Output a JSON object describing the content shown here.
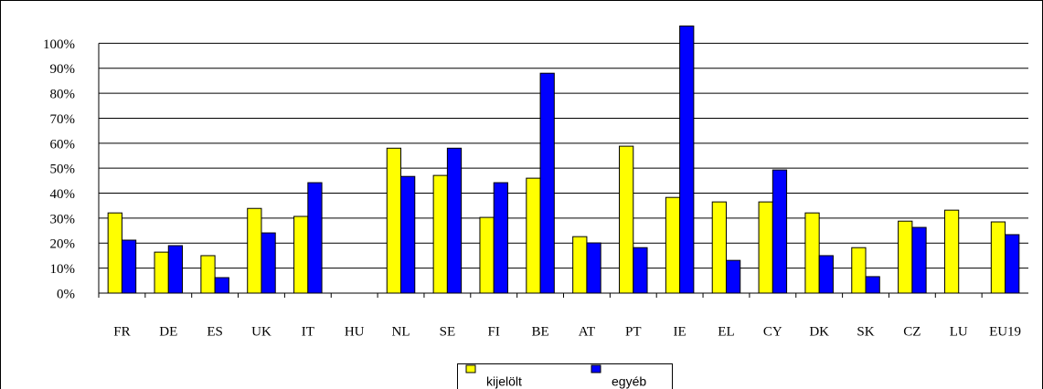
{
  "chart_data": {
    "type": "bar",
    "categories": [
      "FR",
      "DE",
      "ES",
      "UK",
      "IT",
      "HU",
      "NL",
      "SE",
      "FI",
      "BE",
      "AT",
      "PT",
      "IE",
      "EL",
      "CY",
      "DK",
      "SK",
      "CZ",
      "LU",
      "EU19"
    ],
    "series": [
      {
        "name": "kijelölt",
        "color": "#ffff00",
        "values": [
          32.1,
          16.4,
          15.0,
          33.9,
          30.7,
          null,
          58.0,
          47.1,
          30.3,
          46.0,
          22.6,
          58.8,
          38.3,
          36.5,
          36.5,
          32.1,
          18.2,
          28.8,
          33.2,
          28.5
        ]
      },
      {
        "name": "egyéb",
        "color": "#0000ff",
        "values": [
          21.2,
          19.0,
          6.2,
          24.1,
          44.2,
          null,
          46.7,
          58.0,
          44.2,
          88.0,
          20.1,
          18.2,
          106.9,
          13.1,
          49.3,
          15.0,
          6.6,
          26.3,
          null,
          23.4
        ]
      }
    ],
    "ylim": [
      0,
      110
    ],
    "yticks": [
      {
        "value": 0,
        "label": "0%"
      },
      {
        "value": 10,
        "label": "10%"
      },
      {
        "value": 20,
        "label": "20%"
      },
      {
        "value": 30,
        "label": "30%"
      },
      {
        "value": 40,
        "label": "40%"
      },
      {
        "value": 50,
        "label": "50%"
      },
      {
        "value": 60,
        "label": "60%"
      },
      {
        "value": 70,
        "label": "70%"
      },
      {
        "value": 80,
        "label": "80%"
      },
      {
        "value": 90,
        "label": "90%"
      },
      {
        "value": 100,
        "label": "100%"
      }
    ],
    "grid": true
  }
}
